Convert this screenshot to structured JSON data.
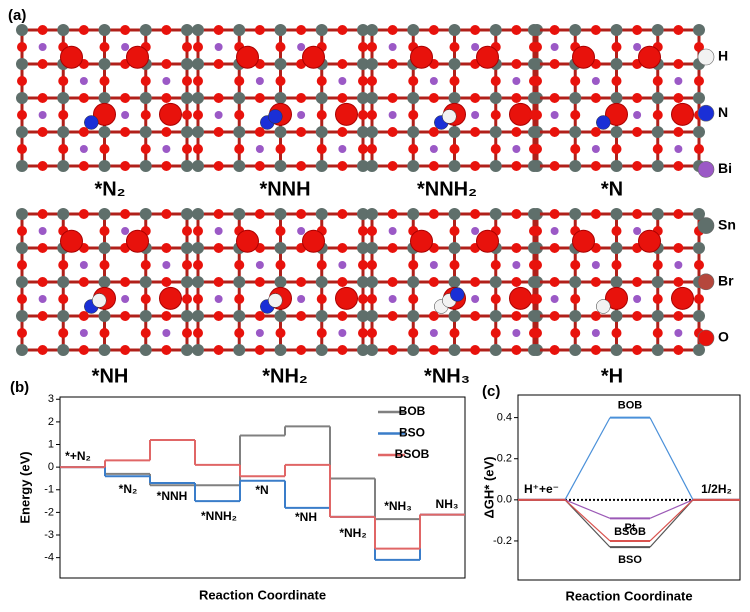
{
  "panel_labels": [
    "(a)",
    "(b)",
    "(c)"
  ],
  "structures": [
    "*N₂",
    "*NNH",
    "*NNH₂",
    "*N",
    "*NH",
    "*NH₂",
    "*NH₃",
    "*H"
  ],
  "atom_legend": [
    {
      "label": "H",
      "color": "#f2f2f2"
    },
    {
      "label": "N",
      "color": "#1a2fd6"
    },
    {
      "label": "Bi",
      "color": "#9b59c6"
    },
    {
      "label": "Sn",
      "color": "#5f6f6b"
    },
    {
      "label": "Br",
      "color": "#b5473c"
    },
    {
      "label": "O",
      "color": "#e8120c"
    }
  ],
  "chart_data": [
    {
      "type": "step",
      "xlabel": "Reaction Coordinate",
      "ylabel": "Energy (eV)",
      "categories": [
        "*+N₂",
        "*N₂",
        "*NNH",
        "*NNH₂",
        "*N",
        "*NH",
        "*NH₂",
        "*NH₃",
        "NH₃"
      ],
      "series": [
        {
          "name": "BOB",
          "color": "#808080",
          "values": [
            0,
            -0.3,
            -0.8,
            -0.8,
            1.4,
            1.8,
            -0.5,
            -2.3,
            -2.1
          ]
        },
        {
          "name": "BSO",
          "color": "#3a7dc9",
          "values": [
            0,
            -0.4,
            -0.7,
            -1.5,
            -0.6,
            -1.8,
            -2.2,
            -4.1,
            -2.1
          ]
        },
        {
          "name": "BSOB",
          "color": "#e06666",
          "values": [
            0,
            0.3,
            1.2,
            0.1,
            -0.4,
            0.1,
            -2.2,
            -3.6,
            -2.1
          ]
        }
      ],
      "ylim": [
        -4.9,
        3.1
      ],
      "yticks": [
        3,
        2,
        1,
        0,
        -1,
        -2,
        -3,
        -4
      ],
      "legend": "upper right"
    },
    {
      "type": "hydrogen",
      "xlabel": "Reaction Coordinate",
      "ylabel": "ΔGH* (eV)",
      "categories": [
        "H⁺+e⁻",
        null,
        "1/2H₂"
      ],
      "series": [
        {
          "name": "BOB",
          "color": "#4a90d9",
          "values": [
            0,
            0.4,
            0
          ]
        },
        {
          "name": "Pt",
          "color": "#9b59b6",
          "values": [
            0,
            -0.09,
            0
          ]
        },
        {
          "name": "BSO",
          "color": "#555555",
          "values": [
            0,
            -0.23,
            0
          ]
        },
        {
          "name": "BSOB",
          "color": "#d9534f",
          "values": [
            0,
            -0.2,
            0
          ]
        }
      ],
      "ylim": [
        -0.39,
        0.51
      ],
      "yticks": [
        0.4,
        0.2,
        {
          "value": 0,
          "label": "0.0"
        },
        -0.2
      ]
    }
  ]
}
